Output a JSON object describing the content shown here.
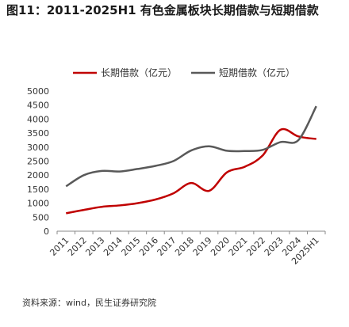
{
  "chart_data": {
    "type": "line",
    "title": "图11：2011-2025H1 有色金属板块长期借款与短期借款",
    "source": "资料来源：wind，民生证券研究院",
    "categories": [
      "2011",
      "2012",
      "2013",
      "2014",
      "2015",
      "2016",
      "2017",
      "2018",
      "2019",
      "2020",
      "2021",
      "2022",
      "2023",
      "2024",
      "2025H1"
    ],
    "series": [
      {
        "name": "长期借款（亿元）",
        "color": "#c00000",
        "values": [
          640,
          760,
          870,
          920,
          1000,
          1130,
          1350,
          1720,
          1440,
          2100,
          2300,
          2700,
          3620,
          3380,
          3290
        ]
      },
      {
        "name": "短期借款（亿元）",
        "color": "#595959",
        "values": [
          1600,
          2000,
          2150,
          2130,
          2220,
          2330,
          2500,
          2880,
          3030,
          2870,
          2860,
          2900,
          3180,
          3250,
          4460
        ]
      }
    ],
    "ylim": [
      0,
      5000
    ],
    "yticks": [
      0,
      500,
      1000,
      1500,
      2000,
      2500,
      3000,
      3500,
      4000,
      4500,
      5000
    ],
    "grid": false,
    "legend": "top"
  }
}
